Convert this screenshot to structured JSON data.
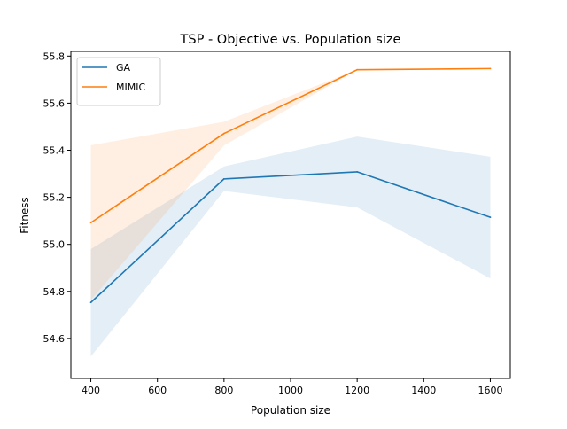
{
  "chart_data": {
    "type": "line",
    "title": "TSP - Objective vs. Population size",
    "xlabel": "Population size",
    "ylabel": "Fitness",
    "xlim": [
      340,
      1660
    ],
    "ylim": [
      54.43,
      55.82
    ],
    "xticks": [
      400,
      600,
      800,
      1000,
      1200,
      1400,
      1600
    ],
    "yticks": [
      54.6,
      54.8,
      55.0,
      55.2,
      55.4,
      55.6,
      55.8
    ],
    "xtick_labels": [
      "400",
      "600",
      "800",
      "1000",
      "1200",
      "1400",
      "1600"
    ],
    "ytick_labels": [
      "54.6",
      "54.8",
      "55.0",
      "55.2",
      "55.4",
      "55.6",
      "55.8"
    ],
    "grid": false,
    "legend_position": "top-left",
    "x": [
      400,
      800,
      1200,
      1600
    ],
    "series": [
      {
        "name": "GA",
        "color": "#1f77b4",
        "values": [
          54.753,
          55.278,
          55.308,
          55.115
        ],
        "lower": [
          54.523,
          55.227,
          55.157,
          54.855
        ],
        "upper": [
          54.98,
          55.331,
          55.458,
          55.372
        ]
      },
      {
        "name": "MIMIC",
        "color": "#ff7f0e",
        "values": [
          55.092,
          55.471,
          55.742,
          55.747
        ],
        "lower": [
          54.763,
          55.42,
          55.742,
          55.747
        ],
        "upper": [
          55.421,
          55.521,
          55.742,
          55.747
        ]
      }
    ]
  }
}
